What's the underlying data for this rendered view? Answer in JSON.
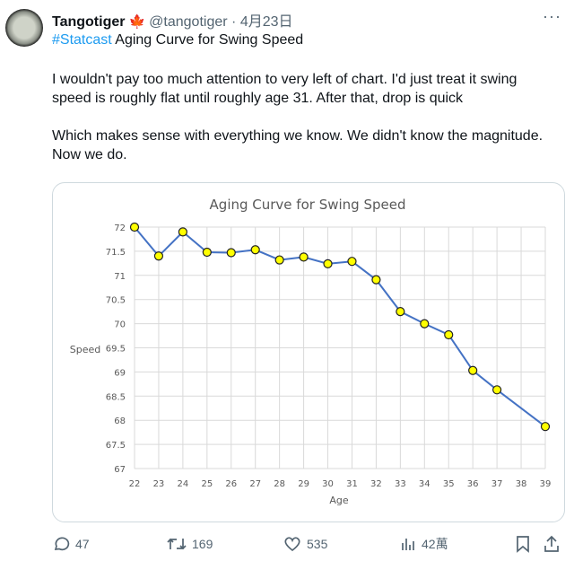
{
  "tweet": {
    "author_name": "Tangotiger",
    "flag_icon": "canada-maple-leaf",
    "handle": "@tangotiger",
    "separator": "·",
    "date": "4月23日",
    "hashtag": "#Statcast",
    "headline": " Aging Curve for Swing Speed",
    "body": "I wouldn't pay too much attention to very left of chart.  I'd just treat it swing speed is roughly flat until roughly age 31. After that, drop is quick\n\nWhich makes sense with everything we know.  We didn't know the magnitude.  Now we do.",
    "more_label": "···"
  },
  "actions": {
    "replies": "47",
    "reposts": "169",
    "likes": "535",
    "views": "42萬"
  },
  "chart_data": {
    "type": "line",
    "title": "Aging Curve for Swing Speed",
    "xlabel": "Age",
    "ylabel": "Speed",
    "x_ticks": [
      "22",
      "23",
      "24",
      "25",
      "26",
      "27",
      "28",
      "29",
      "30",
      "31",
      "32",
      "33",
      "34",
      "35",
      "36",
      "37",
      "38",
      "39"
    ],
    "y_ticks": [
      "67",
      "67.5",
      "68",
      "68.5",
      "69",
      "69.5",
      "70",
      "70.5",
      "71",
      "71.5",
      "72"
    ],
    "xlim": [
      22,
      39
    ],
    "ylim": [
      67,
      72
    ],
    "grid": true,
    "line_color": "#4472c4",
    "marker_color": "#ffff00",
    "x": [
      22,
      23,
      24,
      25,
      26,
      27,
      28,
      29,
      30,
      31,
      32,
      33,
      34,
      35,
      36,
      37,
      39
    ],
    "y": [
      72.0,
      71.4,
      71.9,
      71.48,
      71.47,
      71.53,
      71.32,
      71.38,
      71.24,
      71.29,
      70.91,
      70.25,
      70.0,
      69.77,
      69.03,
      68.63,
      67.87
    ]
  }
}
